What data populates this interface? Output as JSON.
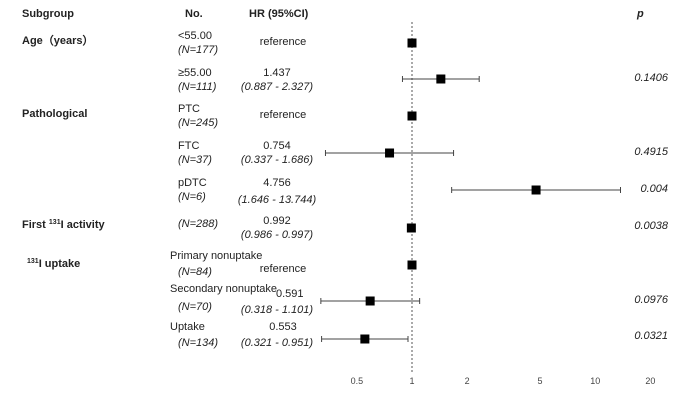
{
  "header": {
    "subgroup": "Subgroup",
    "no": "No.",
    "hr": "HR (95%CI)",
    "p": "p"
  },
  "groups": [
    {
      "label": "Age（years）",
      "sup": "",
      "suffix": ""
    },
    {
      "label": "Pathological",
      "sup": "",
      "suffix": ""
    },
    {
      "label": "First ",
      "sup": "131",
      "suffix": "I activity"
    },
    {
      "label": "",
      "sup": "131",
      "suffix": "I uptake"
    }
  ],
  "rows": [
    {
      "cat": "<55.00",
      "n": "(N=177)",
      "hr": "reference",
      "ci": "",
      "p": ""
    },
    {
      "cat": "≥55.00",
      "n": "(N=111)",
      "hr": "1.437",
      "ci": "(0.887 -  2.327)",
      "p": "0.1406"
    },
    {
      "cat": "PTC",
      "n": "(N=245)",
      "hr": "reference",
      "ci": "",
      "p": ""
    },
    {
      "cat": "FTC",
      "n": "(N=37)",
      "hr": "0.754",
      "ci": "(0.337 -  1.686)",
      "p": "0.4915"
    },
    {
      "cat": "pDTC",
      "n": "(N=6)",
      "hr": "4.756",
      "ci": "(1.646 - 13.744)",
      "p": "0.004"
    },
    {
      "cat": "",
      "n": "(N=288)",
      "hr": "0.992",
      "ci": "(0.986 -  0.997)",
      "p": "0.0038"
    },
    {
      "cat": "Primary nonuptake",
      "n": "(N=84)",
      "hr": "reference",
      "ci": "",
      "p": ""
    },
    {
      "cat": "Secondary nonuptake",
      "n": "(N=70)",
      "hr": "0.591",
      "ci": "(0.318 -  1.101)",
      "p": "0.0976"
    },
    {
      "cat": "Uptake",
      "n": "(N=134)",
      "hr": "0.553",
      "ci": "(0.321 -  0.951)",
      "p": "0.0321"
    }
  ],
  "chart_data": {
    "type": "scatter",
    "title": "",
    "xlabel": "HR (95%CI)",
    "xscale": "log",
    "xlim": [
      0.3,
      20
    ],
    "xticks": [
      0.5,
      1,
      2,
      5,
      10,
      20
    ],
    "reference_line": 1,
    "series": [
      {
        "name": "<55.00",
        "hr": 1.0,
        "lo": null,
        "hi": null
      },
      {
        "name": "≥55.00",
        "hr": 1.437,
        "lo": 0.887,
        "hi": 2.327
      },
      {
        "name": "PTC",
        "hr": 1.0,
        "lo": null,
        "hi": null
      },
      {
        "name": "FTC",
        "hr": 0.754,
        "lo": 0.337,
        "hi": 1.686
      },
      {
        "name": "pDTC",
        "hr": 4.756,
        "lo": 1.646,
        "hi": 13.744
      },
      {
        "name": "First 131I activity",
        "hr": 0.992,
        "lo": 0.986,
        "hi": 0.997
      },
      {
        "name": "Primary nonuptake",
        "hr": 1.0,
        "lo": null,
        "hi": null
      },
      {
        "name": "Secondary nonuptake",
        "hr": 0.591,
        "lo": 0.318,
        "hi": 1.101
      },
      {
        "name": "Uptake",
        "hr": 0.553,
        "lo": 0.321,
        "hi": 0.951
      }
    ]
  }
}
